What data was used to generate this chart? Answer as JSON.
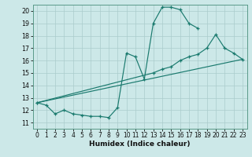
{
  "xlabel": "Humidex (Indice chaleur)",
  "bg_color": "#cce8e8",
  "line_color": "#1a7a6e",
  "grid_color": "#aacccc",
  "xlim": [
    -0.5,
    23.5
  ],
  "ylim": [
    10.5,
    20.5
  ],
  "xticks": [
    0,
    1,
    2,
    3,
    4,
    5,
    6,
    7,
    8,
    9,
    10,
    11,
    12,
    13,
    14,
    15,
    16,
    17,
    18,
    19,
    20,
    21,
    22,
    23
  ],
  "yticks": [
    11,
    12,
    13,
    14,
    15,
    16,
    17,
    18,
    19,
    20
  ],
  "series1_x": [
    0,
    1,
    2,
    3,
    4,
    5,
    6,
    7,
    8,
    9,
    10,
    11,
    12,
    13,
    14,
    15,
    16,
    17,
    18
  ],
  "series1_y": [
    12.6,
    12.4,
    11.7,
    12.0,
    11.7,
    11.6,
    11.5,
    11.5,
    11.4,
    12.2,
    16.6,
    16.3,
    14.5,
    19.0,
    20.3,
    20.3,
    20.1,
    19.0,
    18.6
  ],
  "series2_x": [
    0,
    13,
    14,
    15,
    16,
    17,
    18,
    19,
    20,
    21,
    22,
    23
  ],
  "series2_y": [
    12.6,
    15.0,
    15.3,
    15.5,
    16.0,
    16.3,
    16.5,
    17.0,
    18.1,
    17.0,
    16.6,
    16.1
  ],
  "series3_x": [
    0,
    23
  ],
  "series3_y": [
    12.6,
    16.1
  ]
}
